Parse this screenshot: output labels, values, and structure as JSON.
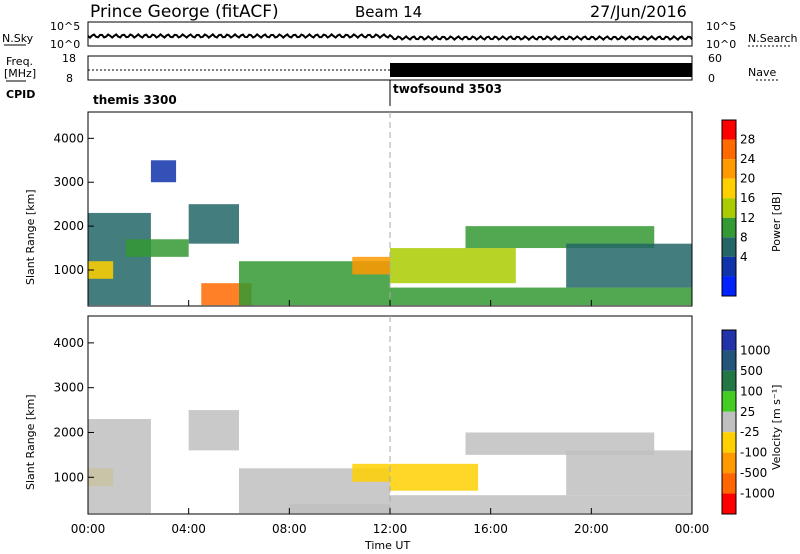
{
  "header": {
    "station": "Prince George (fitACF)",
    "beam": "Beam 14",
    "date": "27/Jun/2016"
  },
  "strip_labels": {
    "nsky": "N.Sky",
    "nsearch": "N.Search",
    "freq": "Freq.",
    "freq_unit": "[MHz]",
    "nave": "Nave",
    "cpid": "CPID",
    "nsky_ticks": [
      "10^5",
      "10^0"
    ],
    "nsearch_ticks": [
      "10^5",
      "10^0"
    ],
    "freq_ticks": [
      "18",
      "8"
    ],
    "nave_ticks": [
      "60",
      "0"
    ]
  },
  "cpid_segments": [
    {
      "label": "themis 3300",
      "start_hour": 0
    },
    {
      "label": "twofsound 3503",
      "start_hour": 12
    }
  ],
  "power_colorbar": {
    "label": "Power [dB]",
    "ticks": [
      "28",
      "24",
      "20",
      "16",
      "12",
      "8",
      "4"
    ],
    "colors": [
      "#ff0000",
      "#ff6a00",
      "#ff9900",
      "#ffd000",
      "#aacc00",
      "#339933",
      "#226666",
      "#1133aa",
      "#0022ff"
    ]
  },
  "velocity_colorbar": {
    "label": "Velocity [m s⁻¹]",
    "ticks": [
      "1000",
      "500",
      "100",
      "25",
      "-25",
      "-100",
      "-500",
      "-1000"
    ],
    "colors": [
      "#2233aa",
      "#225577",
      "#227744",
      "#44cc22",
      "#c0c0c0",
      "#ffd000",
      "#ff9900",
      "#ff6600",
      "#ff0000"
    ]
  },
  "chart_data": [
    {
      "type": "heatmap",
      "title": "Power",
      "xlabel": "Time UT",
      "ylabel": "Slant Range [km]",
      "x_ticks": [
        "00:00",
        "04:00",
        "08:00",
        "12:00",
        "16:00",
        "20:00",
        "00:00"
      ],
      "y_ticks": [
        1000,
        2000,
        3000,
        4000
      ],
      "xlim": [
        0,
        24
      ],
      "ylim": [
        180,
        4600
      ],
      "colorbar_range": [
        0,
        30
      ],
      "regions": [
        {
          "t0": 0.0,
          "t1": 2.5,
          "r0": 200,
          "r1": 2300,
          "value": 8
        },
        {
          "t0": 0.0,
          "t1": 1.0,
          "r0": 800,
          "r1": 1200,
          "value": 18
        },
        {
          "t0": 1.5,
          "t1": 4.0,
          "r0": 1300,
          "r1": 1700,
          "value": 10
        },
        {
          "t0": 2.5,
          "t1": 3.5,
          "r0": 3000,
          "r1": 3500,
          "value": 6
        },
        {
          "t0": 4.0,
          "t1": 6.0,
          "r0": 1600,
          "r1": 2500,
          "value": 8
        },
        {
          "t0": 4.5,
          "t1": 6.5,
          "r0": 200,
          "r1": 700,
          "value": 26
        },
        {
          "t0": 6.0,
          "t1": 12.0,
          "r0": 200,
          "r1": 1200,
          "value": 10
        },
        {
          "t0": 10.5,
          "t1": 12.0,
          "r0": 900,
          "r1": 1300,
          "value": 22
        },
        {
          "t0": 12.0,
          "t1": 24.0,
          "r0": 200,
          "r1": 600,
          "value": 10
        },
        {
          "t0": 12.0,
          "t1": 17.0,
          "r0": 700,
          "r1": 1500,
          "value": 14
        },
        {
          "t0": 15.0,
          "t1": 22.5,
          "r0": 1500,
          "r1": 2000,
          "value": 12
        },
        {
          "t0": 19.0,
          "t1": 24.0,
          "r0": 600,
          "r1": 1600,
          "value": 8
        }
      ]
    },
    {
      "type": "heatmap",
      "title": "Velocity",
      "xlabel": "Time UT",
      "ylabel": "Slant Range [km]",
      "x_ticks": [
        "00:00",
        "04:00",
        "08:00",
        "12:00",
        "16:00",
        "20:00",
        "00:00"
      ],
      "y_ticks": [
        1000,
        2000,
        3000,
        4000
      ],
      "xlim": [
        0,
        24
      ],
      "ylim": [
        180,
        4600
      ],
      "colorbar_range": [
        -1000,
        1000
      ],
      "regions": [
        {
          "t0": 0.0,
          "t1": 1.0,
          "r0": 800,
          "r1": 1200,
          "value": -300
        },
        {
          "t0": 0.0,
          "t1": 2.5,
          "r0": 200,
          "r1": 2300,
          "value": 0
        },
        {
          "t0": 4.0,
          "t1": 6.0,
          "r0": 1600,
          "r1": 2500,
          "value": 0
        },
        {
          "t0": 6.0,
          "t1": 12.0,
          "r0": 200,
          "r1": 1200,
          "value": 0
        },
        {
          "t0": 8.0,
          "t1": 12.0,
          "r0": 200,
          "r1": 400,
          "value": 60
        },
        {
          "t0": 10.5,
          "t1": 12.0,
          "r0": 900,
          "r1": 1300,
          "value": -150
        },
        {
          "t0": 12.0,
          "t1": 15.5,
          "r0": 700,
          "r1": 1300,
          "value": -200
        },
        {
          "t0": 12.0,
          "t1": 24.0,
          "r0": 200,
          "r1": 600,
          "value": -60
        },
        {
          "t0": 15.0,
          "t1": 22.5,
          "r0": 1500,
          "r1": 2000,
          "value": 0
        },
        {
          "t0": 19.0,
          "t1": 24.0,
          "r0": 600,
          "r1": 1600,
          "value": 0
        }
      ]
    }
  ]
}
